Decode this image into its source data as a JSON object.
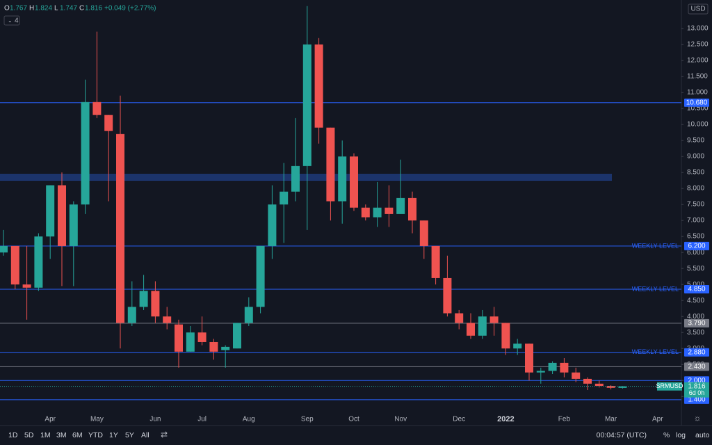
{
  "header": {
    "ohlc": [
      [
        "O",
        "1.767"
      ],
      [
        "H",
        "1.824"
      ],
      [
        "L",
        "1.747"
      ],
      [
        "C",
        "1.816"
      ]
    ],
    "change": "+0.049 (+2.77%)",
    "indicator_count": "4",
    "currency": "USD"
  },
  "chart_data": {
    "type": "candlestick",
    "categories": [
      null,
      null,
      null,
      null,
      "Apr",
      null,
      null,
      null,
      "May",
      null,
      null,
      null,
      null,
      "Jun",
      null,
      null,
      null,
      "Jul",
      null,
      null,
      null,
      "Aug",
      null,
      null,
      null,
      null,
      "Sep",
      null,
      null,
      null,
      "Oct",
      null,
      null,
      null,
      "Nov",
      null,
      null,
      null,
      null,
      "Dec",
      null,
      null,
      null,
      "2022",
      null,
      null,
      null,
      null,
      "Feb",
      null,
      null,
      null,
      "Mar",
      null,
      null,
      null,
      "Apr",
      null
    ],
    "open": [
      6.0,
      6.2,
      5.0,
      4.9,
      6.5,
      8.1,
      6.2,
      7.5,
      10.7,
      10.3,
      9.7,
      3.8,
      4.3,
      4.8,
      4.0,
      3.75,
      2.9,
      3.5,
      3.2,
      2.95,
      3.0,
      3.8,
      4.3,
      6.2,
      7.5,
      7.9,
      8.7,
      12.5,
      9.9,
      7.6,
      9.0,
      7.4,
      7.1,
      7.4,
      7.2,
      7.7,
      7.0,
      6.2,
      5.2,
      4.1,
      3.8,
      3.4,
      4.0,
      3.8,
      3.0,
      3.15,
      2.25,
      2.3,
      2.55,
      2.25,
      2.05,
      1.9,
      1.83,
      1.767,
      null,
      null,
      null,
      null
    ],
    "high": [
      6.7,
      6.2,
      6.2,
      6.6,
      8.1,
      8.5,
      7.6,
      11.4,
      12.9,
      10.3,
      10.9,
      5.1,
      5.3,
      5.1,
      4.3,
      3.9,
      3.7,
      4.0,
      3.3,
      3.1,
      3.8,
      4.6,
      6.2,
      8.1,
      8.8,
      10.2,
      13.7,
      12.7,
      9.9,
      9.5,
      9.1,
      7.5,
      8.2,
      8.1,
      8.9,
      7.9,
      7.0,
      6.2,
      5.9,
      4.2,
      4.1,
      4.2,
      4.3,
      3.8,
      3.3,
      3.15,
      2.4,
      2.6,
      2.7,
      2.4,
      2.1,
      2.0,
      1.85,
      1.824,
      null,
      null,
      null,
      null
    ],
    "low": [
      5.9,
      4.85,
      3.9,
      4.8,
      5.8,
      4.95,
      4.95,
      7.2,
      10.2,
      7.6,
      3.0,
      3.7,
      4.2,
      3.8,
      3.6,
      2.4,
      2.9,
      3.1,
      2.65,
      2.4,
      3.0,
      3.7,
      4.1,
      5.8,
      6.3,
      7.6,
      6.7,
      9.4,
      7.0,
      6.9,
      7.3,
      7.0,
      6.8,
      6.8,
      7.3,
      6.6,
      5.8,
      5.0,
      4.0,
      3.6,
      3.3,
      3.3,
      3.4,
      2.8,
      2.8,
      2.0,
      1.9,
      2.2,
      2.1,
      1.95,
      1.7,
      1.78,
      1.72,
      1.747,
      null,
      null,
      null,
      null
    ],
    "close": [
      6.2,
      5.0,
      4.9,
      6.5,
      8.1,
      6.2,
      7.5,
      10.7,
      10.3,
      9.8,
      3.8,
      4.3,
      4.8,
      4.0,
      3.8,
      2.9,
      3.5,
      3.2,
      2.9,
      3.05,
      3.8,
      4.3,
      6.2,
      7.5,
      7.9,
      8.7,
      12.5,
      9.9,
      7.6,
      9.0,
      7.4,
      7.1,
      7.4,
      7.2,
      7.7,
      7.0,
      6.2,
      5.2,
      4.1,
      3.8,
      3.4,
      4.0,
      3.8,
      3.0,
      3.15,
      2.25,
      2.3,
      2.55,
      2.25,
      2.05,
      1.9,
      1.83,
      1.77,
      1.816,
      null,
      null,
      null,
      null
    ],
    "up_color": "#26a69a",
    "down_color": "#ef5350",
    "ylim": [
      1.07,
      13.89
    ],
    "yticks": [
      {
        "value": 13,
        "label": "13.000"
      },
      {
        "value": 12.5,
        "label": "12.500"
      },
      {
        "value": 12,
        "label": "12.000"
      },
      {
        "value": 11.5,
        "label": "11.500"
      },
      {
        "value": 11,
        "label": "11.000"
      },
      {
        "value": 10.5,
        "label": "10.500"
      },
      {
        "value": 10,
        "label": "10.000"
      },
      {
        "value": 9.5,
        "label": "9.500"
      },
      {
        "value": 9,
        "label": "9.000"
      },
      {
        "value": 8.5,
        "label": "8.500"
      },
      {
        "value": 8,
        "label": "8.000"
      },
      {
        "value": 7.5,
        "label": "7.500"
      },
      {
        "value": 7,
        "label": "7.000"
      },
      {
        "value": 6.5,
        "label": "6.500"
      },
      {
        "value": 6,
        "label": "6.000"
      },
      {
        "value": 5.5,
        "label": "5.500"
      },
      {
        "value": 5,
        "label": "5.000"
      },
      {
        "value": 4.5,
        "label": "4.500"
      },
      {
        "value": 4,
        "label": "4.000"
      },
      {
        "value": 3.5,
        "label": "3.500"
      },
      {
        "value": 3,
        "label": "3.000"
      },
      {
        "value": 2.5,
        "label": "2.500"
      },
      {
        "value": 2,
        "label": "2.000"
      },
      {
        "value": 1.5,
        "label": "1.500"
      }
    ],
    "zone": {
      "low": 8.24,
      "high": 8.46,
      "color": "#1e3a78"
    },
    "levels": [
      {
        "value": 10.68,
        "label": "10.680",
        "color": "#2962ff"
      },
      {
        "value": 6.2,
        "label": "6.200",
        "color": "#2962ff",
        "note": "WEEKLY LEVEL"
      },
      {
        "value": 4.85,
        "label": "4.850",
        "color": "#2962ff",
        "note": "WEEKLY LEVEL"
      },
      {
        "value": 3.79,
        "label": "3.790",
        "color": "#787b86"
      },
      {
        "value": 2.88,
        "label": "2.880",
        "color": "#2962ff",
        "note": "WEEKLY LEVEL"
      },
      {
        "value": 2.43,
        "label": "2.430",
        "color": "#787b86"
      },
      {
        "value": 2.0,
        "label": "2.000",
        "color": "#2962ff"
      },
      {
        "value": 1.4,
        "label": "1.400",
        "color": "#2962ff"
      }
    ],
    "price_tag": {
      "symbol": "SRMUSD",
      "value": 1.816,
      "countdown": "6d 0h"
    }
  },
  "toolbar": {
    "ranges": [
      "1D",
      "5D",
      "1M",
      "3M",
      "6M",
      "YTD",
      "1Y",
      "5Y",
      "All"
    ],
    "clock": "00:04:57 (UTC)",
    "options": [
      "%",
      "log",
      "auto"
    ]
  }
}
